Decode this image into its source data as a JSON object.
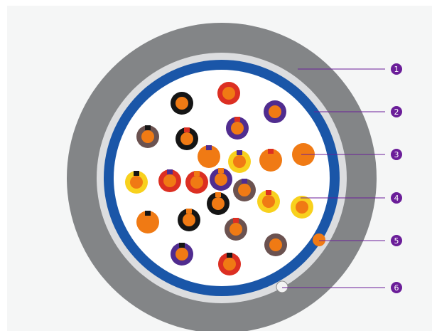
{
  "diagram": {
    "colors": {
      "panel": "#f5f6f6",
      "outer_jacket": "#838587",
      "inner_sheath": "#dcdddf",
      "shield": "#1a56a8",
      "core_fill": "#ffffff",
      "callout": "#6b1e99",
      "conductor": "#f07a14",
      "drain_wire": "#f2f2f2"
    },
    "wires": [
      {
        "insulation": "#151515",
        "stripe": null
      },
      {
        "insulation": "#dc2f22",
        "stripe": null
      },
      {
        "insulation": "#502c8f",
        "stripe": null
      },
      {
        "insulation": "#6b5250",
        "stripe": "#151515"
      },
      {
        "insulation": "#151515",
        "stripe": "#dc2f22"
      },
      {
        "insulation": "#502c8f",
        "stripe": "#dc2f22"
      },
      {
        "insulation": "#f07a14",
        "stripe": "#502c8f"
      },
      {
        "insulation": "#f8d11d",
        "stripe": "#502c8f"
      },
      {
        "insulation": "#f07a14",
        "stripe": "#dc2f22"
      },
      {
        "insulation": "#f07a14",
        "stripe": null
      },
      {
        "insulation": "#f8d11d",
        "stripe": "#151515"
      },
      {
        "insulation": "#dc2f22",
        "stripe": "#502c8f"
      },
      {
        "insulation": "#dc2f22",
        "stripe": "#f07a14"
      },
      {
        "insulation": "#502c8f",
        "stripe": "#f07a14"
      },
      {
        "insulation": "#6b5250",
        "stripe": "#502c8f"
      },
      {
        "insulation": "#151515",
        "stripe": "#f07a14"
      },
      {
        "insulation": "#f8d11d",
        "stripe": "#dc2f22"
      },
      {
        "insulation": "#f8d11d",
        "stripe": null
      },
      {
        "insulation": "#f07a14",
        "stripe": "#151515"
      },
      {
        "insulation": "#151515",
        "stripe": "#f07a14"
      },
      {
        "insulation": "#6b5250",
        "stripe": "#dc2f22"
      },
      {
        "insulation": "#6b5250",
        "stripe": null
      },
      {
        "insulation": "#502c8f",
        "stripe": "#151515"
      },
      {
        "insulation": "#dc2f22",
        "stripe": "#151515"
      }
    ],
    "callouts": [
      {
        "number": "1",
        "part": "outer-jacket"
      },
      {
        "number": "2",
        "part": "shield"
      },
      {
        "number": "3",
        "part": "conductor"
      },
      {
        "number": "4",
        "part": "insulation"
      },
      {
        "number": "5",
        "part": "filler-element"
      },
      {
        "number": "6",
        "part": "drain-wire"
      }
    ]
  }
}
